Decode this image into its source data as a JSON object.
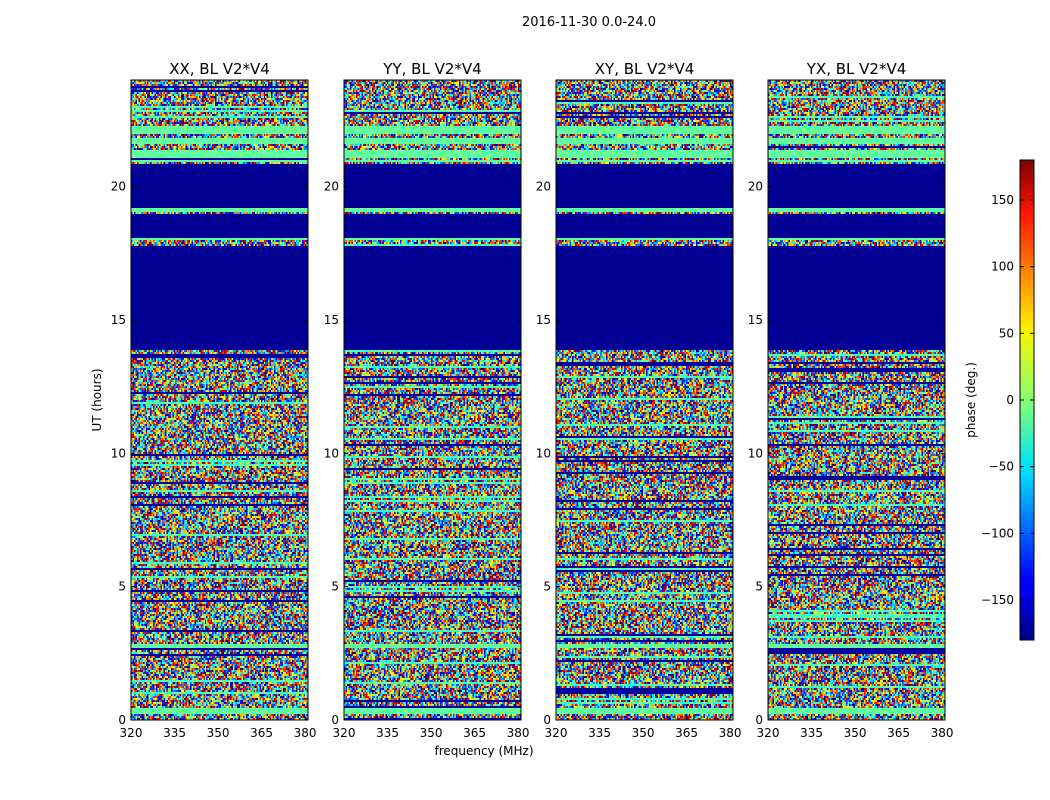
{
  "chart_data": {
    "type": "heatmap",
    "title": "2016-11-30 0.0-24.0",
    "xlabel": "frequency (MHz)",
    "ylabel": "UT (hours)",
    "xlim": [
      320,
      381
    ],
    "ylim": [
      0,
      24
    ],
    "xticks": [
      "320",
      "335",
      "350",
      "365",
      "380"
    ],
    "yticks": [
      "0",
      "5",
      "10",
      "15",
      "20"
    ],
    "colormap": "jet",
    "colorbar": {
      "label": "phase (deg.)",
      "range": [
        -180,
        180
      ],
      "ticks": [
        "150",
        "100",
        "50",
        "0",
        "−50",
        "−100",
        "−150"
      ],
      "tick_values": [
        150,
        100,
        50,
        0,
        -50,
        -100,
        -150
      ]
    },
    "panels": [
      {
        "title": "XX, BL V2*V4"
      },
      {
        "title": "YY, BL V2*V4"
      },
      {
        "title": "XY, BL V2*V4"
      },
      {
        "title": "YX, BL V2*V4"
      }
    ],
    "flagged_ut_ranges": [
      [
        13.9,
        17.8
      ],
      [
        18.05,
        19.0
      ],
      [
        19.2,
        20.85
      ]
    ],
    "stable_bands_ut": [
      [
        0.2,
        0.45
      ],
      [
        2.7,
        2.85
      ],
      [
        18.0,
        18.15
      ],
      [
        19.05,
        19.2
      ],
      [
        20.9,
        21.0
      ],
      [
        21.1,
        21.4
      ],
      [
        21.6,
        21.8
      ],
      [
        22.0,
        22.3
      ]
    ]
  }
}
